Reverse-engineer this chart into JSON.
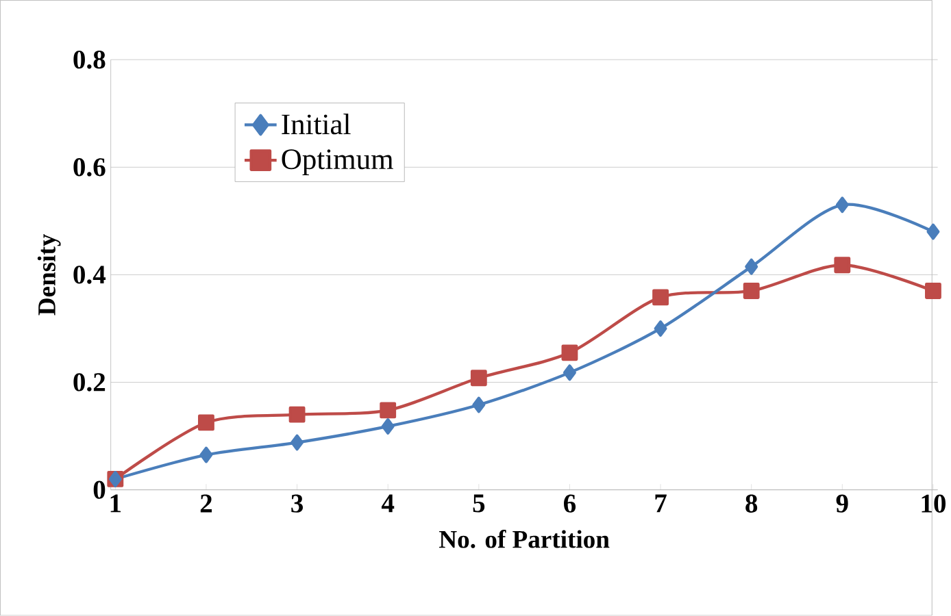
{
  "chart_data": {
    "type": "line",
    "xlabel": "No. of Partition",
    "ylabel": "Density",
    "categories": [
      "1",
      "2",
      "3",
      "4",
      "5",
      "6",
      "7",
      "8",
      "9",
      "10"
    ],
    "series": [
      {
        "name": "Initial",
        "color": "#4a7ebb",
        "marker": "diamond",
        "values": [
          0.02,
          0.065,
          0.088,
          0.118,
          0.158,
          0.218,
          0.3,
          0.415,
          0.53,
          0.48
        ]
      },
      {
        "name": "Optimum",
        "color": "#be4b48",
        "marker": "square",
        "values": [
          0.02,
          0.125,
          0.14,
          0.148,
          0.208,
          0.255,
          0.358,
          0.37,
          0.418,
          0.37
        ]
      }
    ],
    "ylim": [
      0,
      0.8
    ],
    "yticks": [
      0,
      0.2,
      0.4,
      0.6,
      0.8
    ],
    "grid": "y",
    "legend": "top left"
  }
}
